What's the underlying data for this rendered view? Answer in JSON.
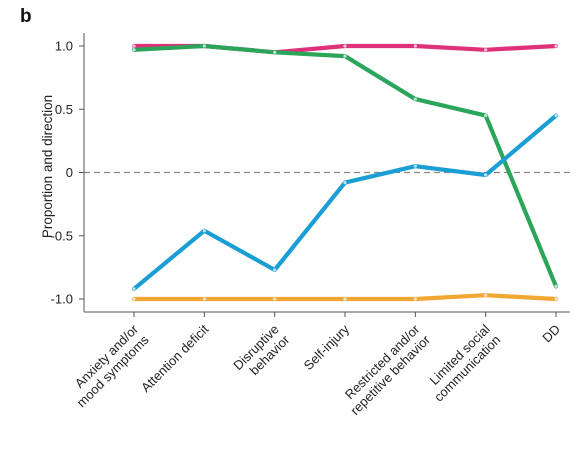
{
  "panel_label": "b",
  "chart_data": {
    "type": "line",
    "title": "",
    "ylabel": "Proportion and direction",
    "xlabel": "",
    "ylim": [
      -1.1,
      1.1
    ],
    "yticks": [
      1.0,
      0.5,
      0,
      -0.5,
      -1.0
    ],
    "ytick_labels": [
      "1.0",
      "0.5",
      "0",
      "-0.5",
      "-1.0"
    ],
    "reference_line": {
      "y": 0,
      "style": "dashed",
      "color": "#888888"
    },
    "grid": false,
    "legend": "none",
    "categories": [
      [
        "Anxiety and/or",
        "mood symptoms"
      ],
      [
        "Attention deficit"
      ],
      [
        "Disruptive",
        "behavior"
      ],
      [
        "Self-injury"
      ],
      [
        "Restricted and/or",
        "repetitive behavior"
      ],
      [
        "Limited social",
        "communication"
      ],
      [
        "DD"
      ]
    ],
    "series": [
      {
        "color": "#e0307a",
        "values": [
          1.0,
          1.0,
          0.95,
          1.0,
          1.0,
          0.97,
          1.0
        ]
      },
      {
        "color": "#2aa55a",
        "values": [
          0.97,
          1.0,
          0.95,
          0.92,
          0.58,
          0.45,
          -0.9
        ]
      },
      {
        "color": "#1a9ed4",
        "values": [
          -0.92,
          -0.46,
          -0.77,
          -0.08,
          0.05,
          -0.02,
          0.45
        ]
      },
      {
        "color": "#f2a733",
        "values": [
          -1.0,
          -1.0,
          -1.0,
          -1.0,
          -1.0,
          -0.97,
          -1.0
        ]
      }
    ]
  }
}
